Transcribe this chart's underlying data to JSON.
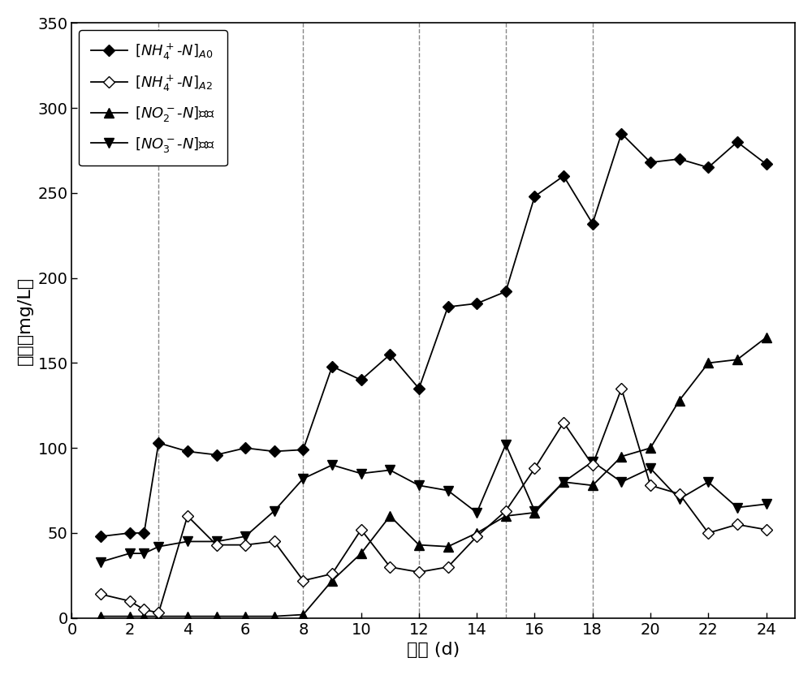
{
  "nh4_A0_x": [
    1,
    2,
    2.5,
    3,
    4,
    5,
    6,
    7,
    8,
    9,
    10,
    11,
    12,
    13,
    14,
    15,
    16,
    17,
    18,
    19,
    20,
    21,
    22,
    23,
    24
  ],
  "nh4_A0_y": [
    48,
    50,
    50,
    103,
    98,
    96,
    100,
    98,
    99,
    148,
    140,
    155,
    135,
    183,
    185,
    192,
    248,
    260,
    232,
    285,
    268,
    270,
    265,
    280,
    267
  ],
  "nh4_A2_x": [
    1,
    2,
    2.5,
    3,
    4,
    5,
    6,
    7,
    8,
    9,
    10,
    11,
    12,
    13,
    14,
    15,
    16,
    17,
    18,
    19,
    20,
    21,
    22,
    23,
    24
  ],
  "nh4_A2_y": [
    14,
    10,
    5,
    3,
    60,
    43,
    43,
    45,
    22,
    26,
    52,
    30,
    27,
    30,
    48,
    63,
    88,
    115,
    90,
    135,
    78,
    73,
    50,
    55,
    52
  ],
  "no2_x": [
    1,
    2,
    2.5,
    3,
    4,
    5,
    6,
    7,
    8,
    9,
    10,
    11,
    12,
    13,
    14,
    15,
    16,
    17,
    18,
    19,
    20,
    21,
    22,
    23,
    24
  ],
  "no2_y": [
    1,
    1,
    1,
    1,
    1,
    1,
    1,
    1,
    2,
    22,
    38,
    60,
    43,
    42,
    50,
    60,
    62,
    80,
    78,
    95,
    100,
    128,
    150,
    152,
    165
  ],
  "no3_x": [
    1,
    2,
    2.5,
    3,
    4,
    5,
    6,
    7,
    8,
    9,
    10,
    11,
    12,
    13,
    14,
    15,
    16,
    17,
    18,
    19,
    20,
    21,
    22,
    23,
    24
  ],
  "no3_y": [
    33,
    38,
    38,
    42,
    45,
    45,
    48,
    63,
    82,
    90,
    85,
    87,
    78,
    75,
    62,
    102,
    63,
    80,
    92,
    80,
    88,
    70,
    80,
    65,
    67
  ],
  "vlines": [
    3,
    8,
    12,
    15,
    18
  ],
  "xlim": [
    0,
    25
  ],
  "ylim": [
    0,
    350
  ],
  "xticks": [
    0,
    2,
    4,
    6,
    8,
    10,
    12,
    14,
    16,
    18,
    20,
    22,
    24
  ],
  "yticks": [
    0,
    50,
    100,
    150,
    200,
    250,
    300,
    350
  ],
  "xlabel": "时间 (d)",
  "ylabel": "浓度（mg/L）",
  "figsize": [
    10.0,
    8.32
  ],
  "dpi": 100
}
